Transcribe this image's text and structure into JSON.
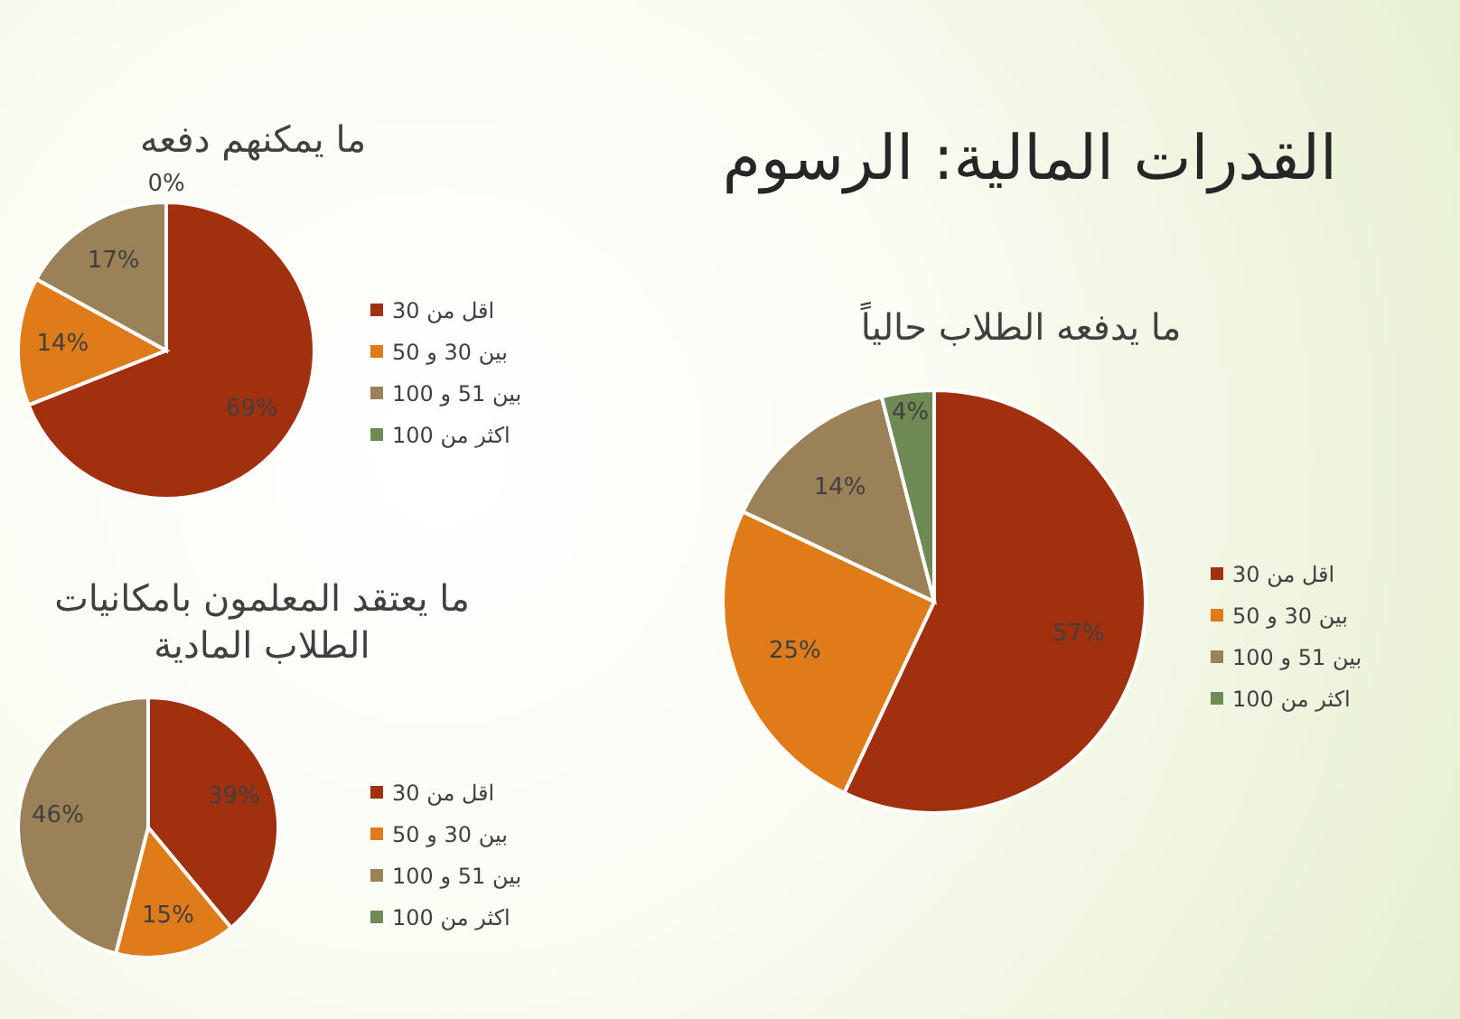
{
  "chart_data": [
    {
      "type": "pie",
      "title": "ما يمكنهم دفعه",
      "categories": [
        "اقل من 30",
        "بين 30 و 50",
        "بين 51 و 100",
        "اكثر من 100"
      ],
      "values": [
        69,
        14,
        17,
        0
      ],
      "value_labels": [
        "69%",
        "14%",
        "17%",
        "0%"
      ],
      "colors": [
        "#a1300f",
        "#e07b1a",
        "#9b8158",
        "#6f8a55"
      ],
      "legend": "right"
    },
    {
      "type": "other",
      "title": "القدرات المالية: الرسوم"
    },
    {
      "type": "pie",
      "title": "ما يدفعه الطلاب حالياً",
      "categories": [
        "اقل من 30",
        "بين 30 و 50",
        "بين 51 و 100",
        "اكثر من 100"
      ],
      "values": [
        57,
        25,
        14,
        4
      ],
      "value_labels": [
        "57%",
        "25%",
        "14%",
        "4%"
      ],
      "colors": [
        "#a1300f",
        "#e07b1a",
        "#9b8158",
        "#6f8a55"
      ],
      "legend": "right"
    },
    {
      "type": "pie",
      "title": "ما يعتقد المعلمون بامكانيات الطلاب المادية",
      "categories": [
        "اقل من 30",
        "بين 30 و 50",
        "بين 51 و 100",
        "اكثر من 100"
      ],
      "values": [
        39,
        15,
        46,
        0
      ],
      "value_labels": [
        "39%",
        "15%",
        "46%",
        null
      ],
      "colors": [
        "#a1300f",
        "#e07b1a",
        "#9b8158",
        "#6f8a55"
      ],
      "legend": "right"
    }
  ]
}
